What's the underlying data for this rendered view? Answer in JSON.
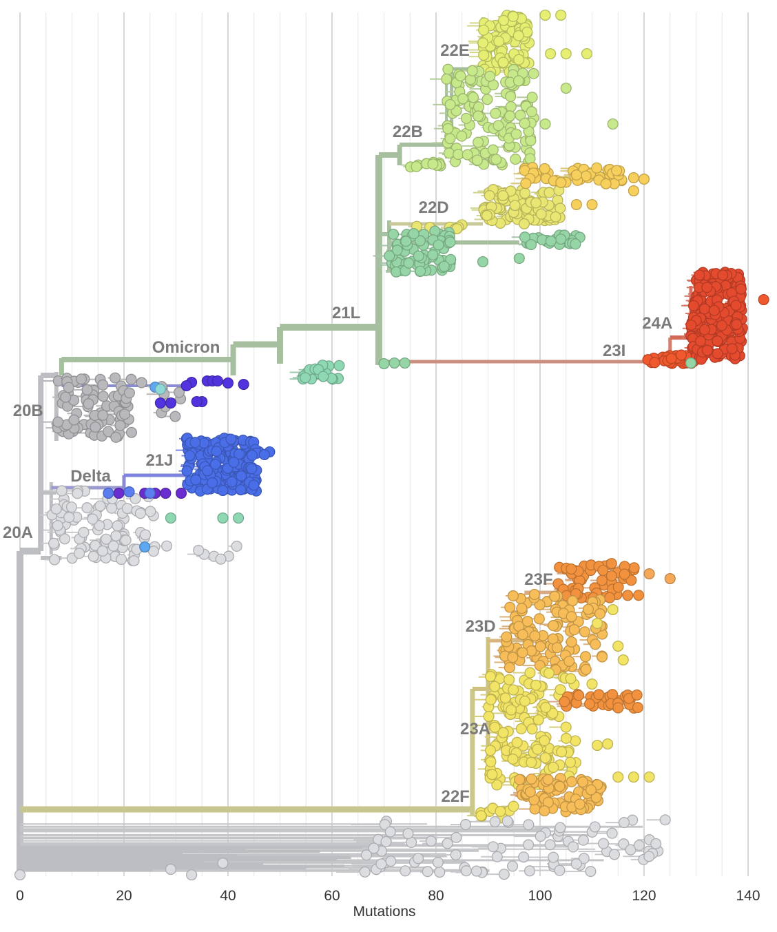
{
  "chart_data": {
    "type": "phylogenetic-tree",
    "xlabel": "Mutations",
    "xlim": [
      0,
      140
    ],
    "x_ticks": [
      "0",
      "20",
      "40",
      "60",
      "80",
      "100",
      "120",
      "140"
    ],
    "clade_labels": [
      {
        "text": "22E",
        "x": 87
      },
      {
        "text": "22B",
        "x": 78
      },
      {
        "text": "22D",
        "x": 83
      },
      {
        "text": "21L",
        "x": 66
      },
      {
        "text": "Omicron",
        "x": 39
      },
      {
        "text": "20B",
        "x": 5
      },
      {
        "text": "21J",
        "x": 30
      },
      {
        "text": "Delta",
        "x": 18
      },
      {
        "text": "20A",
        "x": 4
      },
      {
        "text": "24A",
        "x": 126
      },
      {
        "text": "23I",
        "x": 117
      },
      {
        "text": "23F",
        "x": 103
      },
      {
        "text": "23D",
        "x": 92
      },
      {
        "text": "23A",
        "x": 91
      },
      {
        "text": "22F",
        "x": 87
      }
    ],
    "colors": {
      "20A": "#dcdde1",
      "20B": "#b9b9bd",
      "Delta": "#7777c8",
      "21J": "#4a6ee8",
      "purple": "#6a2ed0",
      "violet": "#5233dd",
      "teal": "#8fd8b4",
      "21L": "#9bbf9f",
      "22B": "#c8e88c",
      "22E": "#e6ef74",
      "22D": "#e9e673",
      "22D_orange": "#f7cf5c",
      "21L_tips": "#96d6a6",
      "23I": "#f0582e",
      "24A": "#e44a2e",
      "22F": "#c8c87e",
      "23A": "#f2e466",
      "23D": "#f6bd58",
      "23F": "#f2923e"
    }
  }
}
